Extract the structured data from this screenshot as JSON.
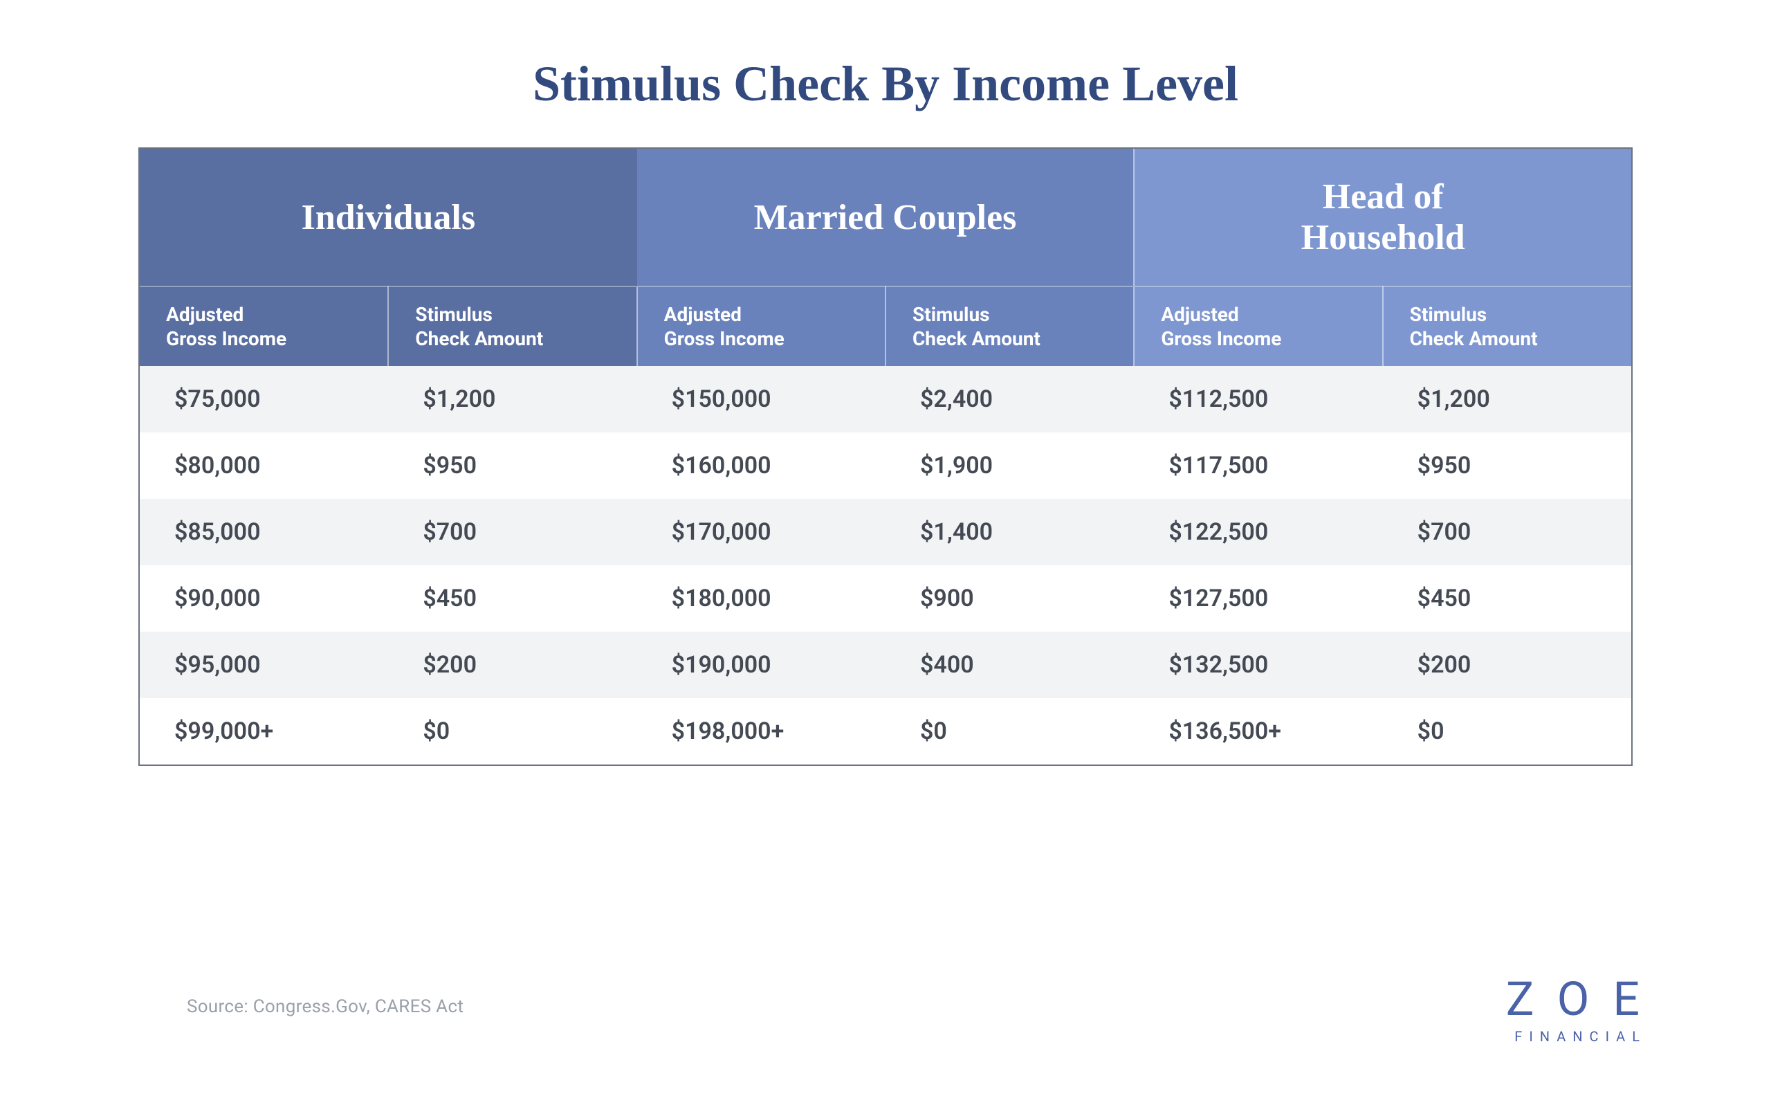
{
  "title": "Stimulus Check By Income Level",
  "colors": {
    "title": "#324a7e",
    "group1_bg": "#5a6fa1",
    "group2_bg": "#6a82bc",
    "group3_bg": "#7f97d0",
    "header_text": "#ffffff",
    "row_odd_bg": "#f2f3f5",
    "row_even_bg": "#ffffff",
    "cell_text": "#444a54",
    "border": "#6b7280",
    "source_text": "#9aa0a9",
    "logo": "#4a62a8"
  },
  "typography": {
    "title_fontsize": 72,
    "group_header_fontsize": 52,
    "sub_header_fontsize": 28,
    "cell_fontsize": 34,
    "source_fontsize": 26
  },
  "table": {
    "groups": [
      {
        "label": "Individuals",
        "sub": [
          "Adjusted Gross Income",
          "Stimulus Check Amount"
        ]
      },
      {
        "label": "Married Couples",
        "sub": [
          "Adjusted Gross Income",
          "Stimulus Check Amount"
        ]
      },
      {
        "label": "Head of Household",
        "sub": [
          "Adjusted Gross Income",
          "Stimulus Check Amount"
        ]
      }
    ],
    "rows": [
      [
        "$75,000",
        "$1,200",
        "$150,000",
        "$2,400",
        "$112,500",
        "$1,200"
      ],
      [
        "$80,000",
        "$950",
        "$160,000",
        "$1,900",
        "$117,500",
        "$950"
      ],
      [
        "$85,000",
        "$700",
        "$170,000",
        "$1,400",
        "$122,500",
        "$700"
      ],
      [
        "$90,000",
        "$450",
        "$180,000",
        "$900",
        "$127,500",
        "$450"
      ],
      [
        "$95,000",
        "$200",
        "$190,000",
        "$400",
        "$132,500",
        "$200"
      ],
      [
        "$99,000+",
        "$0",
        "$198,000+",
        "$0",
        "$136,500+",
        "$0"
      ]
    ]
  },
  "source": "Source: Congress.Gov, CARES Act",
  "logo": {
    "main": "ZOE",
    "sub": "FINANCIAL"
  }
}
